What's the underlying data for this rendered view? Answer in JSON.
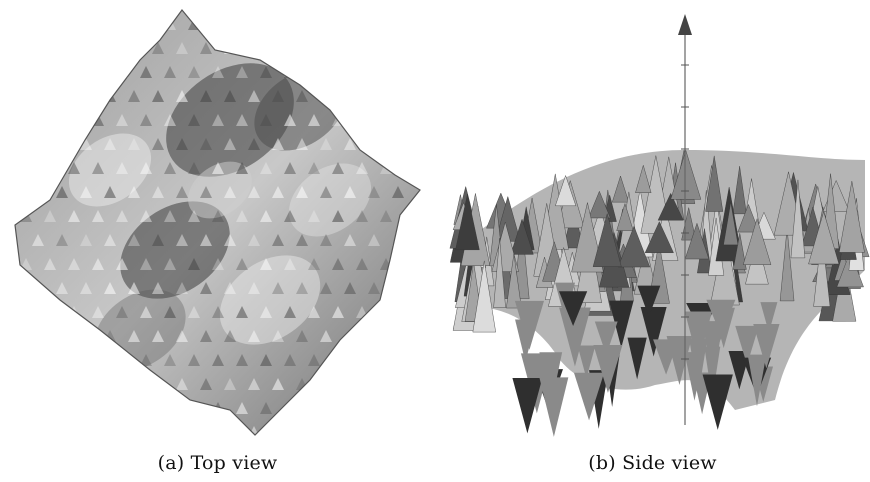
{
  "figure": {
    "subfigures": [
      {
        "id": "a",
        "caption": "(a) Top view"
      },
      {
        "id": "b",
        "caption": "(b) Side view"
      }
    ]
  }
}
